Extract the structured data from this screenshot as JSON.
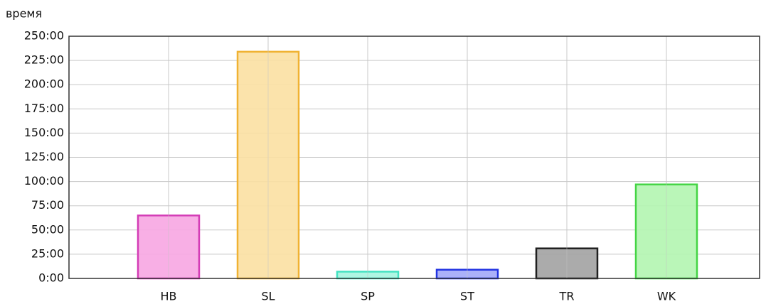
{
  "chart_data": {
    "type": "bar",
    "ylabel": "время",
    "categories": [
      "HB",
      "SL",
      "SP",
      "ST",
      "TR",
      "WK"
    ],
    "values": [
      65,
      234,
      7,
      9,
      31,
      97
    ],
    "colors": [
      "#f7a6e2",
      "#fbe0a2",
      "#a6f5e0",
      "#a2a8f8",
      "#a2a2a2",
      "#b2f5b0"
    ],
    "edge_colors": [
      "#d43cb6",
      "#f0b232",
      "#44e2c2",
      "#2234e2",
      "#202020",
      "#44d444"
    ],
    "ylim": [
      0,
      250
    ],
    "yticks": [
      {
        "value": 0,
        "label": "0:00"
      },
      {
        "value": 25,
        "label": "25:00"
      },
      {
        "value": 50,
        "label": "50:00"
      },
      {
        "value": 75,
        "label": "75:00"
      },
      {
        "value": 100,
        "label": "100:00"
      },
      {
        "value": 125,
        "label": "125:00"
      },
      {
        "value": 150,
        "label": "150:00"
      },
      {
        "value": 175,
        "label": "175:00"
      },
      {
        "value": 200,
        "label": "200:00"
      },
      {
        "value": 225,
        "label": "225:00"
      },
      {
        "value": 250,
        "label": "250:00"
      }
    ],
    "grid": true
  }
}
